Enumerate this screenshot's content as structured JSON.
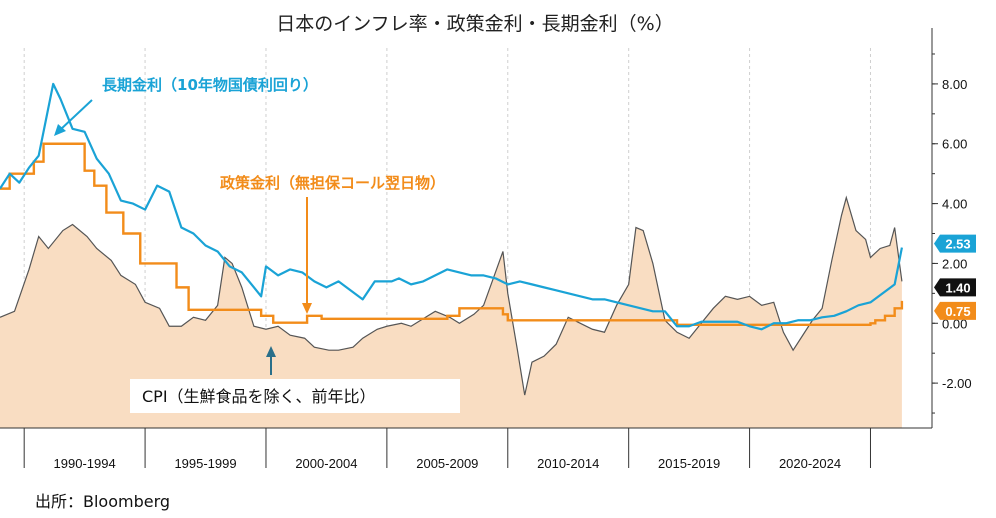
{
  "chart_data": {
    "type": "line",
    "title": "日本のインフレ率・政策金利・長期金利（%）",
    "categories": [
      "1990-1994",
      "1995-1999",
      "2000-2004",
      "2005-2009",
      "2010-2014",
      "2015-2019",
      "2020-2024"
    ],
    "ylim": [
      -3.5,
      9.2
    ],
    "xlim": [
      1988.0,
      2025.8
    ],
    "y_ticks": [
      "8.00",
      "6.00",
      "4.00",
      "2.00",
      "0.00",
      "-2.00"
    ],
    "y_tick_values": [
      8,
      6,
      4,
      2,
      0,
      -2
    ],
    "grid": "vertical",
    "series": [
      {
        "name": "長期金利（10年物国債利回り）",
        "color": "#1aa3d6",
        "x": [
          1988.0,
          1988.4,
          1988.8,
          1989.2,
          1989.6,
          1990.0,
          1990.2,
          1990.5,
          1990.8,
          1991.0,
          1991.5,
          1992.0,
          1992.5,
          1993.0,
          1993.5,
          1994.0,
          1994.5,
          1995.0,
          1995.5,
          1996.0,
          1996.5,
          1997.0,
          1997.5,
          1998.0,
          1998.5,
          1998.8,
          1999.0,
          1999.5,
          2000.0,
          2000.5,
          2001.0,
          2001.5,
          2002.0,
          2002.5,
          2003.0,
          2003.5,
          2003.9,
          2004.2,
          2004.5,
          2005.0,
          2005.5,
          2006.0,
          2006.5,
          2007.0,
          2007.5,
          2008.0,
          2008.5,
          2009.0,
          2009.5,
          2010.0,
          2010.5,
          2011.0,
          2011.5,
          2012.0,
          2012.5,
          2013.0,
          2013.5,
          2014.0,
          2014.5,
          2015.0,
          2015.5,
          2016.0,
          2016.5,
          2017.0,
          2017.5,
          2018.0,
          2018.5,
          2019.0,
          2019.5,
          2020.0,
          2020.5,
          2021.0,
          2021.5,
          2022.0,
          2022.5,
          2023.0,
          2023.5,
          2024.0,
          2024.5,
          2025.0,
          2025.3
        ],
        "y": [
          4.5,
          5.0,
          4.7,
          5.2,
          5.6,
          7.2,
          8.0,
          7.5,
          6.9,
          6.5,
          6.4,
          5.5,
          5.0,
          4.1,
          4.0,
          3.8,
          4.6,
          4.4,
          3.2,
          3.0,
          2.6,
          2.4,
          1.9,
          1.7,
          1.2,
          0.9,
          1.9,
          1.6,
          1.8,
          1.7,
          1.4,
          1.2,
          1.4,
          1.1,
          0.8,
          1.4,
          1.4,
          1.4,
          1.5,
          1.3,
          1.4,
          1.6,
          1.8,
          1.7,
          1.6,
          1.6,
          1.5,
          1.3,
          1.4,
          1.3,
          1.2,
          1.1,
          1.0,
          0.9,
          0.8,
          0.8,
          0.7,
          0.6,
          0.5,
          0.4,
          0.4,
          -0.1,
          -0.1,
          0.05,
          0.05,
          0.05,
          0.05,
          -0.1,
          -0.2,
          0.0,
          0.0,
          0.1,
          0.1,
          0.2,
          0.25,
          0.4,
          0.6,
          0.7,
          1.0,
          1.3,
          2.53
        ]
      },
      {
        "name": "政策金利（無担保コール翌日物）",
        "color": "#f28c1a",
        "step": true,
        "x": [
          1988.0,
          1988.4,
          1989.4,
          1989.8,
          1990.4,
          1991.5,
          1991.9,
          1992.4,
          1993.1,
          1993.8,
          1995.3,
          1995.8,
          1998.8,
          1999.3,
          2000.7,
          2001.3,
          2006.5,
          2007.0,
          2008.8,
          2009.0,
          2010.8,
          2016.0,
          2024.0,
          2024.2,
          2024.6,
          2025.0,
          2025.3
        ],
        "y": [
          4.5,
          5.0,
          5.4,
          6.0,
          6.0,
          5.1,
          4.6,
          3.7,
          3.0,
          2.0,
          1.2,
          0.45,
          0.25,
          0.02,
          0.25,
          0.15,
          0.25,
          0.5,
          0.3,
          0.1,
          0.1,
          -0.05,
          0.0,
          0.1,
          0.25,
          0.5,
          0.75
        ]
      },
      {
        "name": "CPI（生鮮食品を除く、前年比）",
        "color": "#555555",
        "fill": "#f9ddc2",
        "x": [
          1988.0,
          1988.6,
          1989.2,
          1989.6,
          1990.0,
          1990.6,
          1991.0,
          1991.6,
          1992.0,
          1992.6,
          1993.0,
          1993.6,
          1994.0,
          1994.6,
          1995.0,
          1995.5,
          1996.0,
          1996.5,
          1997.0,
          1997.3,
          1997.6,
          1998.0,
          1998.5,
          1999.0,
          1999.5,
          2000.0,
          2000.6,
          2001.0,
          2001.6,
          2002.0,
          2002.6,
          2003.0,
          2003.6,
          2004.0,
          2004.6,
          2005.0,
          2005.6,
          2006.0,
          2006.6,
          2007.0,
          2007.6,
          2008.0,
          2008.4,
          2008.8,
          2009.0,
          2009.4,
          2009.7,
          2010.0,
          2010.5,
          2011.0,
          2011.5,
          2012.0,
          2012.5,
          2013.0,
          2013.5,
          2014.0,
          2014.3,
          2014.6,
          2015.0,
          2015.5,
          2016.0,
          2016.5,
          2017.0,
          2017.5,
          2018.0,
          2018.5,
          2019.0,
          2019.5,
          2020.0,
          2020.4,
          2020.8,
          2021.2,
          2021.6,
          2022.0,
          2022.4,
          2022.8,
          2023.0,
          2023.4,
          2023.8,
          2024.0,
          2024.4,
          2024.8,
          2025.0,
          2025.3
        ],
        "y": [
          0.2,
          0.4,
          1.8,
          2.9,
          2.5,
          3.1,
          3.3,
          2.9,
          2.5,
          2.1,
          1.6,
          1.3,
          0.7,
          0.5,
          -0.1,
          -0.1,
          0.2,
          0.1,
          0.6,
          2.2,
          2.0,
          1.2,
          -0.1,
          -0.2,
          -0.1,
          -0.4,
          -0.5,
          -0.8,
          -0.9,
          -0.9,
          -0.8,
          -0.5,
          -0.2,
          -0.1,
          0.0,
          -0.1,
          0.2,
          0.4,
          0.2,
          0.0,
          0.3,
          0.6,
          1.5,
          2.4,
          1.0,
          -0.9,
          -2.4,
          -1.3,
          -1.1,
          -0.7,
          0.2,
          0.0,
          -0.2,
          -0.3,
          0.6,
          1.3,
          3.2,
          3.1,
          2.0,
          0.1,
          -0.3,
          -0.5,
          0.0,
          0.5,
          0.9,
          0.8,
          0.9,
          0.6,
          0.7,
          -0.3,
          -0.9,
          -0.4,
          0.1,
          0.5,
          2.1,
          3.6,
          4.2,
          3.1,
          2.8,
          2.2,
          2.5,
          2.6,
          3.2,
          1.4
        ]
      }
    ],
    "badges": [
      {
        "text": "2.53",
        "value": 2.53,
        "bg": "#1aa3d6",
        "fg": "#ffffff"
      },
      {
        "text": "1.40",
        "value": 1.4,
        "bg": "#111111",
        "fg": "#ffffff"
      },
      {
        "text": "0.75",
        "value": 0.75,
        "bg": "#f28c1a",
        "fg": "#ffffff"
      }
    ],
    "annotations": {
      "long_rate": "長期金利（10年物国債利回り）",
      "policy_rate": "政策金利（無担保コール翌日物）",
      "cpi": "CPI（生鮮食品を除く、前年比）"
    },
    "source": "出所：Bloomberg"
  }
}
